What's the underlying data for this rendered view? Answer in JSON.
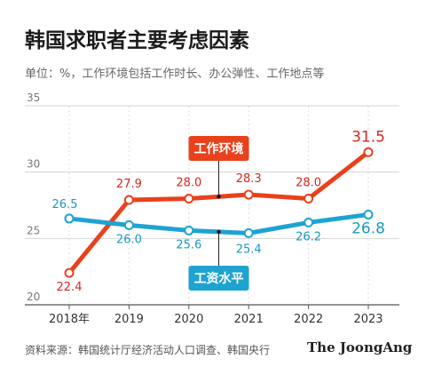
{
  "title": "韩国求职者主要考虑因素",
  "subtitle": "单位：%，工作环境包括工作时长、办公弹性、工作地点等",
  "source": "资料来源：韩国统计厅经济活动人口调查、韩国央行",
  "brand": "The JoongAng",
  "chart_data": {
    "type": "line",
    "categories": [
      "2018年",
      "2019",
      "2020",
      "2021",
      "2022",
      "2023"
    ],
    "yticks": [
      20,
      25,
      30,
      35
    ],
    "ylim": [
      20,
      35
    ],
    "grid": true,
    "series": [
      {
        "name": "工作环境",
        "color": "#e8411b",
        "label_color": "#d8261e",
        "values": [
          22.4,
          27.9,
          28.0,
          28.3,
          28.0,
          31.5
        ]
      },
      {
        "name": "工资水平",
        "color": "#1ea3d1",
        "label_color": "#1a97c3",
        "values": [
          26.5,
          26.0,
          25.6,
          25.4,
          26.2,
          26.8
        ]
      }
    ]
  }
}
